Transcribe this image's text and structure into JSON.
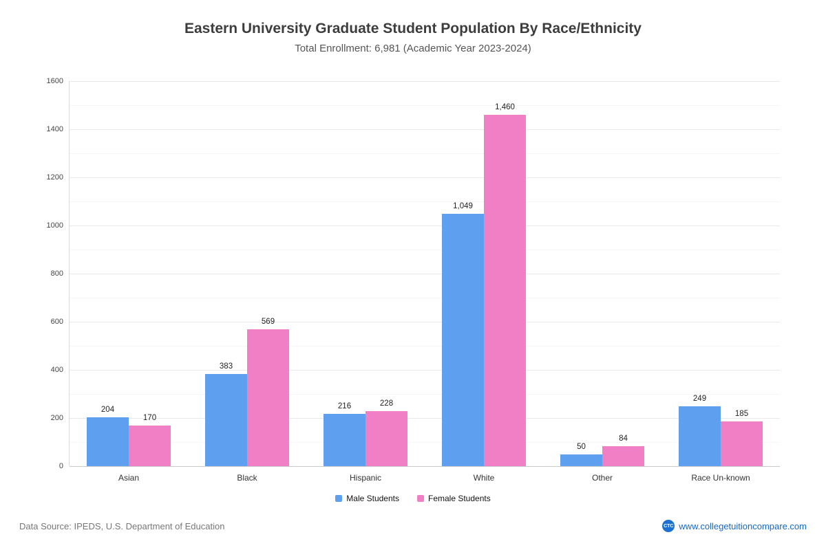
{
  "title": "Eastern University Graduate Student Population By Race/Ethnicity",
  "subtitle": "Total Enrollment: 6,981 (Academic Year 2023-2024)",
  "footer": {
    "source": "Data Source: IPEDS, U.S. Department of Education",
    "website": "www.collegetuitioncompare.com",
    "logo": "CTC"
  },
  "chart_data": {
    "type": "bar",
    "title": "Eastern University Graduate Student Population By Race/Ethnicity",
    "subtitle": "Total Enrollment: 6,981 (Academic Year 2023-2024)",
    "categories": [
      "Asian",
      "Black",
      "Hispanic",
      "White",
      "Other",
      "Race Un-known"
    ],
    "series": [
      {
        "name": "Male Students",
        "color": "#5f9ff0",
        "values": [
          204,
          383,
          216,
          1049,
          50,
          249
        ]
      },
      {
        "name": "Female Students",
        "color": "#f07fc5",
        "values": [
          170,
          569,
          228,
          1460,
          84,
          185
        ]
      }
    ],
    "xlabel": "",
    "ylabel": "",
    "ylim": [
      0,
      1600
    ],
    "ytick_step": 200,
    "ytick_minor_step": 100,
    "grid": true,
    "legend_position": "bottom"
  }
}
